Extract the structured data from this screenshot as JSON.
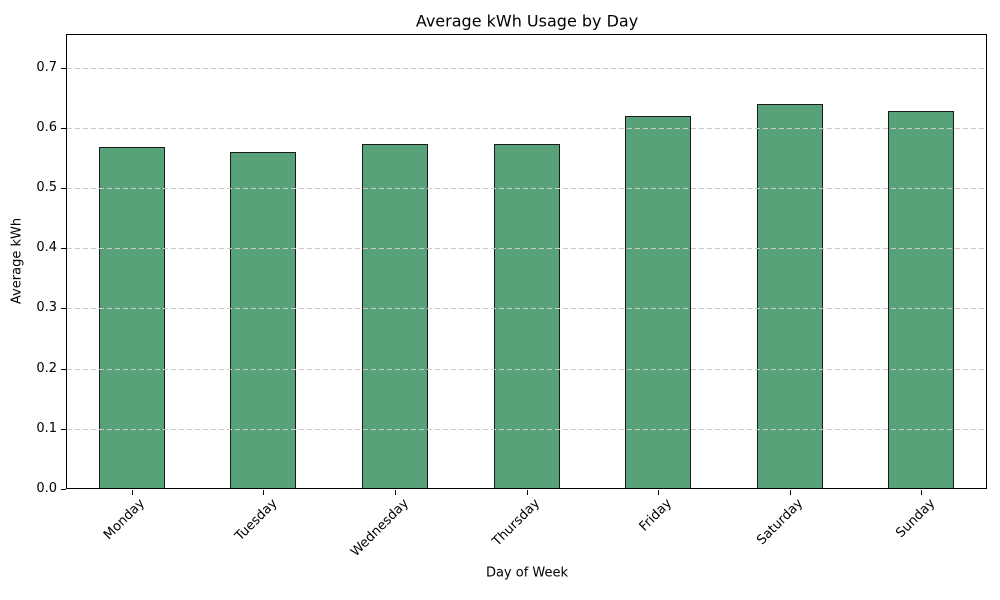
{
  "chart_data": {
    "type": "bar",
    "title": "Average kWh Usage by Day",
    "xlabel": "Day of Week",
    "ylabel": "Average kWh",
    "categories": [
      "Monday",
      "Tuesday",
      "Wednesday",
      "Thursday",
      "Friday",
      "Saturday",
      "Sunday"
    ],
    "values": [
      0.568,
      0.56,
      0.574,
      0.574,
      0.62,
      0.639,
      0.628
    ],
    "ylim": [
      0,
      0.756
    ],
    "yticks": [
      0.0,
      0.1,
      0.2,
      0.3,
      0.4,
      0.5,
      0.6,
      0.7
    ],
    "ytick_format_decimals": 1,
    "grid": {
      "axis": "y",
      "style": "dashed",
      "color": "#c9c9c9"
    },
    "legend_position": "none",
    "bar_style": {
      "fill_color": "#58a27a",
      "edge_color": "#1a1a1a",
      "width_fraction": 0.5
    },
    "background_color": "#ffffff",
    "text_color": "#000000",
    "xticklabel_rotation_deg": 45
  }
}
